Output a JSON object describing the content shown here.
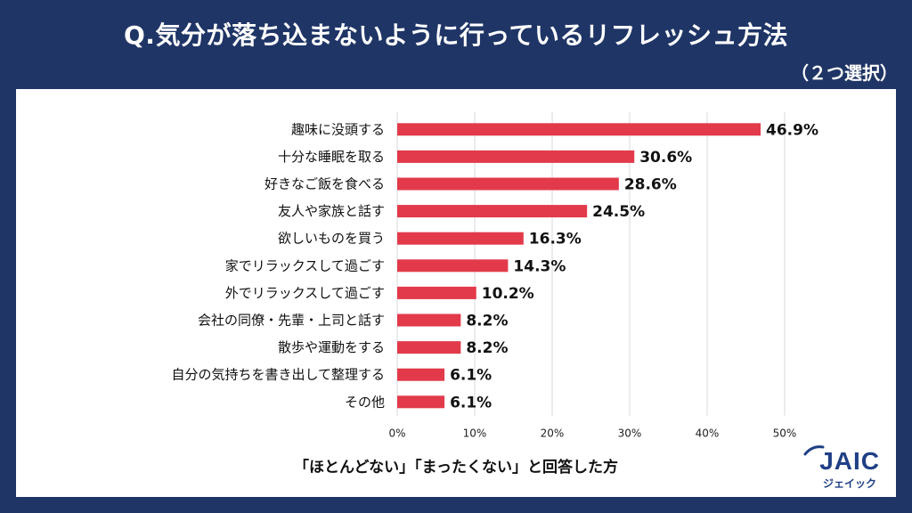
{
  "header": {
    "title": "Q.気分が落ち込まないように行っているリフレッシュ方法",
    "subtitle": "（２つ選択）"
  },
  "footnote": "「ほとんどない」「まったくない」と回答した方",
  "logo": {
    "text": "JAIC",
    "sub": "ジェイック"
  },
  "colors": {
    "background": "#1f3566",
    "bar": "#e23a4b",
    "grid": "#d9d9d9"
  },
  "chart_data": {
    "type": "bar",
    "orientation": "horizontal",
    "categories": [
      "趣味に没頭する",
      "十分な睡眠を取る",
      "好きなご飯を食べる",
      "友人や家族と話す",
      "欲しいものを買う",
      "家でリラックスして過ごす",
      "外でリラックスして過ごす",
      "会社の同僚・先輩・上司と話す",
      "散歩や運動をする",
      "自分の気持ちを書き出して整理する",
      "その他"
    ],
    "values": [
      46.9,
      30.6,
      28.6,
      24.5,
      16.3,
      14.3,
      10.2,
      8.2,
      8.2,
      6.1,
      6.1
    ],
    "value_labels": [
      "46.9%",
      "30.6%",
      "28.6%",
      "24.5%",
      "16.3%",
      "14.3%",
      "10.2%",
      "8.2%",
      "8.2%",
      "6.1%",
      "6.1%"
    ],
    "xlim": [
      0,
      50
    ],
    "x_ticks": [
      0,
      10,
      20,
      30,
      40,
      50
    ],
    "x_tick_labels": [
      "0%",
      "10%",
      "20%",
      "30%",
      "40%",
      "50%"
    ],
    "grid": true
  }
}
